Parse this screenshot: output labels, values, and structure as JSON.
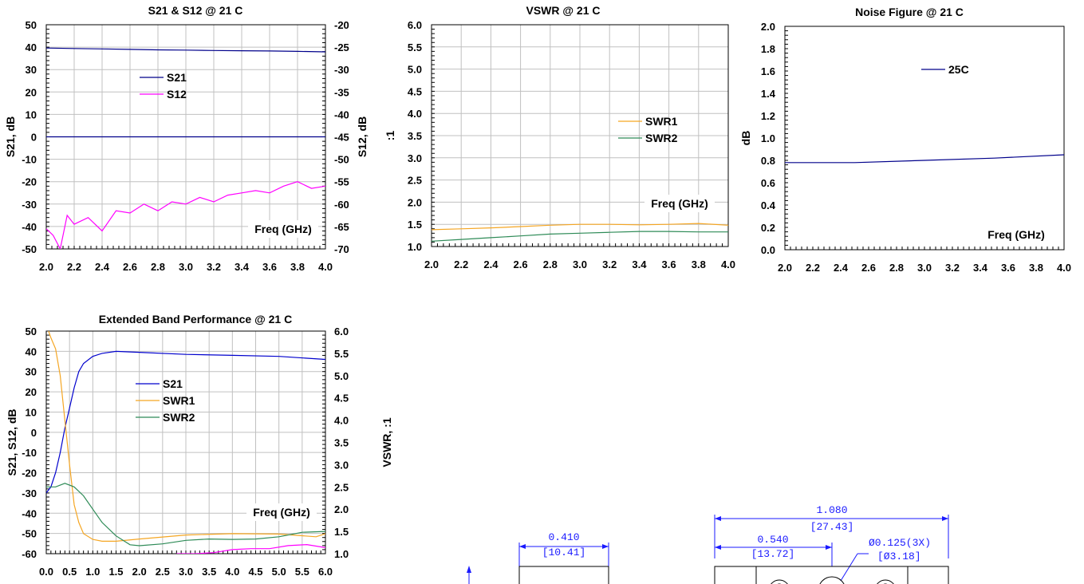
{
  "chart_data": [
    {
      "id": "s21s12",
      "type": "line",
      "title": "S21 & S12 @ 21 C",
      "xlabel": "",
      "ylabel": "S21, dB",
      "y2label": "S12, dB",
      "annotation": "Freq (GHz)",
      "xlim": [
        2.0,
        4.0
      ],
      "ylim": [
        -50,
        50
      ],
      "y2lim": [
        -70,
        -20
      ],
      "x_ticks": [
        "2.0",
        "2.2",
        "2.4",
        "2.6",
        "2.8",
        "3.0",
        "3.2",
        "3.4",
        "3.6",
        "3.8",
        "4.0"
      ],
      "y_ticks": [
        "50",
        "40",
        "30",
        "20",
        "10",
        "0",
        "-10",
        "-20",
        "-30",
        "-40",
        "-50"
      ],
      "y2_ticks": [
        "-20",
        "-25",
        "-30",
        "-35",
        "-40",
        "-45",
        "-50",
        "-55",
        "-60",
        "-65",
        "-70"
      ],
      "grid": true,
      "legend_position": "upper-center",
      "series": [
        {
          "name": "S21",
          "color": "#00008b",
          "axis": "left",
          "x": [
            2.0,
            2.2,
            2.4,
            2.6,
            2.8,
            3.0,
            3.2,
            3.4,
            3.6,
            3.8,
            4.0
          ],
          "values": [
            39.6,
            39.4,
            39.2,
            39.0,
            38.8,
            38.7,
            38.5,
            38.4,
            38.3,
            38.1,
            37.9
          ]
        },
        {
          "name": "S12",
          "color": "#ff00ff",
          "axis": "right",
          "x": [
            2.0,
            2.05,
            2.1,
            2.15,
            2.2,
            2.3,
            2.4,
            2.5,
            2.6,
            2.7,
            2.8,
            2.9,
            3.0,
            3.1,
            3.2,
            3.3,
            3.4,
            3.5,
            3.6,
            3.7,
            3.8,
            3.9,
            4.0
          ],
          "values": [
            -65.5,
            -67.0,
            -70.0,
            -62.5,
            -64.5,
            -63.0,
            -66.0,
            -61.5,
            -62.0,
            -60.0,
            -61.5,
            -59.5,
            -60.0,
            -58.5,
            -59.5,
            -58.0,
            -57.5,
            -57.0,
            -57.5,
            -56.0,
            -55.0,
            -56.5,
            -56.0
          ]
        }
      ],
      "reference_line": {
        "axis": "left",
        "value": 0,
        "color": "#00008b"
      }
    },
    {
      "id": "vswr",
      "type": "line",
      "title": "VSWR @ 21 C",
      "xlabel": "",
      "ylabel": ":1",
      "annotation": "Freq (GHz)",
      "xlim": [
        2.0,
        4.0
      ],
      "ylim": [
        1.0,
        6.0
      ],
      "x_ticks": [
        "2.0",
        "2.2",
        "2.4",
        "2.6",
        "2.8",
        "3.0",
        "3.2",
        "3.4",
        "3.6",
        "3.8",
        "4.0"
      ],
      "y_ticks": [
        "6.0",
        "5.5",
        "5.0",
        "4.5",
        "4.0",
        "3.5",
        "3.0",
        "2.5",
        "2.0",
        "1.5",
        "1.0"
      ],
      "grid": true,
      "legend_position": "right",
      "series": [
        {
          "name": "SWR1",
          "color": "#f5a623",
          "x": [
            2.0,
            2.2,
            2.4,
            2.6,
            2.8,
            3.0,
            3.2,
            3.4,
            3.6,
            3.8,
            4.0
          ],
          "values": [
            1.38,
            1.4,
            1.42,
            1.45,
            1.48,
            1.5,
            1.5,
            1.49,
            1.5,
            1.52,
            1.48
          ]
        },
        {
          "name": "SWR2",
          "color": "#2e8b57",
          "x": [
            2.0,
            2.2,
            2.4,
            2.6,
            2.8,
            3.0,
            3.2,
            3.4,
            3.6,
            3.8,
            4.0
          ],
          "values": [
            1.12,
            1.16,
            1.2,
            1.24,
            1.28,
            1.3,
            1.32,
            1.34,
            1.34,
            1.33,
            1.33
          ]
        }
      ]
    },
    {
      "id": "nf",
      "type": "line",
      "title": "Noise Figure @ 21 C",
      "xlabel": "",
      "ylabel": "dB",
      "annotation": "Freq (GHz)",
      "xlim": [
        2.0,
        4.0
      ],
      "ylim": [
        0.0,
        2.0
      ],
      "x_ticks": [
        "2.0",
        "2.2",
        "2.4",
        "2.6",
        "2.8",
        "3.0",
        "3.2",
        "3.4",
        "3.6",
        "3.8",
        "4.0"
      ],
      "y_ticks": [
        "2.0",
        "1.8",
        "1.6",
        "1.4",
        "1.2",
        "1.0",
        "0.8",
        "0.6",
        "0.4",
        "0.2",
        "0.0"
      ],
      "grid": false,
      "legend_position": "upper-center",
      "series": [
        {
          "name": "25C",
          "color": "#00008b",
          "x": [
            2.0,
            2.5,
            3.0,
            3.5,
            4.0
          ],
          "values": [
            0.78,
            0.78,
            0.8,
            0.82,
            0.85
          ]
        }
      ]
    },
    {
      "id": "ext",
      "type": "line",
      "title": "Extended Band Performance @ 21 C",
      "xlabel": "",
      "ylabel": "S21, S12, dB",
      "y2label": "VSWR, :1",
      "annotation": "Freq (GHz)",
      "xlim": [
        0.0,
        6.0
      ],
      "ylim": [
        -60,
        50
      ],
      "y2lim": [
        1.0,
        6.0
      ],
      "x_ticks": [
        "0.0",
        "0.5",
        "1.0",
        "1.5",
        "2.0",
        "2.5",
        "3.0",
        "3.5",
        "4.0",
        "4.5",
        "5.0",
        "5.5",
        "6.0"
      ],
      "y_ticks": [
        "50",
        "40",
        "30",
        "20",
        "10",
        "0",
        "-10",
        "-20",
        "-30",
        "-40",
        "-50",
        "-60"
      ],
      "y2_ticks": [
        "6.0",
        "5.5",
        "5.0",
        "4.5",
        "4.0",
        "3.5",
        "3.0",
        "2.5",
        "2.0",
        "1.5",
        "1.0"
      ],
      "grid": true,
      "legend_position": "upper-center",
      "series": [
        {
          "name": "S21",
          "color": "#0000cd",
          "axis": "left",
          "x": [
            0.0,
            0.1,
            0.2,
            0.3,
            0.4,
            0.5,
            0.6,
            0.7,
            0.8,
            1.0,
            1.2,
            1.5,
            2.0,
            3.0,
            4.0,
            5.0,
            6.0
          ],
          "values": [
            -30,
            -27,
            -20,
            -10,
            2,
            12,
            22,
            30,
            34,
            37.5,
            39,
            40,
            39.5,
            38.5,
            38,
            37.5,
            36
          ]
        },
        {
          "name": "SWR1",
          "color": "#f5a623",
          "axis": "right",
          "x": [
            0.05,
            0.1,
            0.2,
            0.3,
            0.4,
            0.5,
            0.6,
            0.7,
            0.8,
            1.0,
            1.2,
            1.5,
            2.0,
            3.0,
            4.0,
            5.0,
            5.8,
            6.0
          ],
          "values": [
            6.0,
            5.85,
            5.6,
            5.0,
            4.0,
            3.0,
            2.1,
            1.7,
            1.45,
            1.32,
            1.28,
            1.28,
            1.33,
            1.42,
            1.45,
            1.44,
            1.38,
            1.45
          ]
        },
        {
          "name": "SWR2",
          "color": "#2e8b57",
          "axis": "right",
          "x": [
            0.0,
            0.2,
            0.4,
            0.6,
            0.8,
            1.0,
            1.2,
            1.5,
            1.8,
            2.0,
            2.5,
            3.0,
            3.5,
            4.0,
            4.5,
            5.0,
            5.5,
            6.0
          ],
          "values": [
            2.5,
            2.5,
            2.58,
            2.5,
            2.3,
            2.0,
            1.7,
            1.4,
            1.2,
            1.18,
            1.22,
            1.3,
            1.33,
            1.32,
            1.33,
            1.38,
            1.48,
            1.5
          ]
        },
        {
          "name": "S12",
          "color": "#ff00ff",
          "axis": "left",
          "x": [
            2.8,
            3.2,
            3.6,
            4.0,
            4.4,
            4.8,
            5.2,
            5.6,
            6.0
          ],
          "values": [
            -60,
            -60,
            -59.5,
            -58,
            -57.5,
            -57.5,
            -56,
            -55.5,
            -57
          ]
        }
      ]
    }
  ],
  "drawing": {
    "dims": [
      {
        "inch": "1.080",
        "mm": "[27.43]"
      },
      {
        "inch": "0.540",
        "mm": "[13.72]"
      },
      {
        "inch": "0.410",
        "mm": "[10.41]"
      }
    ],
    "hole_note": "Ø0.125(3X)",
    "hole_note_mm": "[Ø3.18]",
    "line_color": "#1a1aff"
  }
}
